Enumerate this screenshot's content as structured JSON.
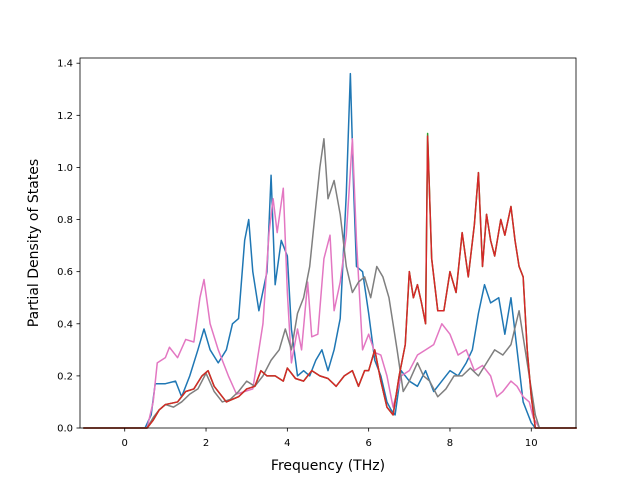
{
  "chart_data": {
    "type": "line",
    "title": "",
    "xlabel": "Frequency (THz)",
    "ylabel": "Partial Density of States",
    "xlim": [
      -1.1,
      11.1
    ],
    "ylim": [
      0.0,
      1.42
    ],
    "xticks": [
      0,
      2,
      4,
      6,
      8,
      10
    ],
    "xtick_labels": [
      "0",
      "2",
      "4",
      "6",
      "8",
      "10"
    ],
    "yticks": [
      0.0,
      0.2,
      0.4,
      0.6,
      0.8,
      1.0,
      1.2,
      1.4
    ],
    "ytick_labels": [
      "0.0",
      "0.2",
      "0.4",
      "0.6",
      "0.8",
      "1.0",
      "1.2",
      "1.4"
    ],
    "grid": false,
    "legend": "none",
    "series": [
      {
        "color": "#1f77b4",
        "x": [
          -1.0,
          0.5,
          0.65,
          0.75,
          1.0,
          1.25,
          1.4,
          1.6,
          1.8,
          1.95,
          2.1,
          2.3,
          2.5,
          2.65,
          2.8,
          2.95,
          3.05,
          3.15,
          3.3,
          3.5,
          3.6,
          3.7,
          3.85,
          4.0,
          4.1,
          4.25,
          4.4,
          4.55,
          4.7,
          4.85,
          5.0,
          5.15,
          5.3,
          5.45,
          5.55,
          5.63,
          5.7,
          5.85,
          6.0,
          6.15,
          6.3,
          6.45,
          6.55,
          6.65,
          6.8,
          7.0,
          7.2,
          7.4,
          7.6,
          7.8,
          8.0,
          8.2,
          8.4,
          8.55,
          8.7,
          8.85,
          9.0,
          9.2,
          9.35,
          9.5,
          9.65,
          9.8,
          9.9,
          10.0,
          10.1,
          11.1
        ],
        "y": [
          0.0,
          0.0,
          0.05,
          0.17,
          0.17,
          0.18,
          0.12,
          0.2,
          0.3,
          0.38,
          0.3,
          0.25,
          0.3,
          0.4,
          0.42,
          0.72,
          0.8,
          0.6,
          0.45,
          0.6,
          0.97,
          0.55,
          0.72,
          0.66,
          0.38,
          0.2,
          0.22,
          0.2,
          0.26,
          0.3,
          0.22,
          0.3,
          0.42,
          0.9,
          1.36,
          0.92,
          0.62,
          0.6,
          0.44,
          0.26,
          0.2,
          0.1,
          0.07,
          0.05,
          0.22,
          0.18,
          0.16,
          0.22,
          0.14,
          0.18,
          0.22,
          0.2,
          0.25,
          0.3,
          0.44,
          0.55,
          0.48,
          0.5,
          0.36,
          0.5,
          0.3,
          0.1,
          0.06,
          0.02,
          0.0,
          0.0
        ]
      },
      {
        "color": "#e377c2",
        "x": [
          -1.0,
          0.55,
          0.7,
          0.8,
          1.0,
          1.1,
          1.3,
          1.5,
          1.7,
          1.85,
          1.95,
          2.1,
          2.3,
          2.55,
          2.75,
          2.95,
          3.15,
          3.4,
          3.55,
          3.65,
          3.75,
          3.9,
          4.0,
          4.1,
          4.25,
          4.35,
          4.5,
          4.6,
          4.75,
          4.9,
          5.05,
          5.15,
          5.3,
          5.45,
          5.6,
          5.7,
          5.85,
          6.0,
          6.15,
          6.3,
          6.45,
          6.6,
          6.8,
          7.0,
          7.2,
          7.4,
          7.6,
          7.8,
          8.0,
          8.2,
          8.4,
          8.6,
          8.8,
          9.0,
          9.15,
          9.3,
          9.5,
          9.65,
          9.8,
          9.95,
          10.05,
          10.2,
          11.1
        ],
        "y": [
          0.0,
          0.0,
          0.1,
          0.25,
          0.27,
          0.31,
          0.27,
          0.34,
          0.33,
          0.5,
          0.57,
          0.4,
          0.3,
          0.2,
          0.13,
          0.14,
          0.15,
          0.4,
          0.75,
          0.88,
          0.75,
          0.92,
          0.52,
          0.25,
          0.38,
          0.3,
          0.56,
          0.35,
          0.36,
          0.65,
          0.74,
          0.45,
          0.56,
          0.74,
          1.11,
          0.72,
          0.3,
          0.36,
          0.29,
          0.28,
          0.2,
          0.08,
          0.2,
          0.22,
          0.28,
          0.3,
          0.32,
          0.4,
          0.36,
          0.28,
          0.3,
          0.22,
          0.24,
          0.2,
          0.12,
          0.14,
          0.18,
          0.16,
          0.12,
          0.1,
          0.04,
          0.0,
          0.0
        ]
      },
      {
        "color": "#7f7f7f",
        "x": [
          -1.0,
          0.55,
          0.7,
          0.85,
          1.0,
          1.2,
          1.4,
          1.6,
          1.8,
          2.0,
          2.2,
          2.4,
          2.6,
          2.8,
          3.0,
          3.2,
          3.4,
          3.6,
          3.8,
          3.95,
          4.1,
          4.25,
          4.4,
          4.55,
          4.7,
          4.8,
          4.9,
          5.0,
          5.15,
          5.3,
          5.45,
          5.6,
          5.75,
          5.9,
          6.05,
          6.2,
          6.35,
          6.5,
          6.6,
          6.7,
          6.85,
          7.0,
          7.2,
          7.35,
          7.5,
          7.7,
          7.9,
          8.1,
          8.3,
          8.5,
          8.7,
          8.9,
          9.1,
          9.3,
          9.5,
          9.7,
          9.85,
          10.0,
          10.1,
          10.2,
          11.1
        ],
        "y": [
          0.0,
          0.0,
          0.04,
          0.07,
          0.09,
          0.08,
          0.1,
          0.13,
          0.15,
          0.21,
          0.14,
          0.1,
          0.11,
          0.14,
          0.18,
          0.16,
          0.2,
          0.26,
          0.3,
          0.38,
          0.3,
          0.44,
          0.5,
          0.62,
          0.85,
          1.0,
          1.11,
          0.88,
          0.95,
          0.82,
          0.62,
          0.52,
          0.56,
          0.58,
          0.5,
          0.62,
          0.58,
          0.5,
          0.4,
          0.3,
          0.14,
          0.18,
          0.25,
          0.2,
          0.18,
          0.12,
          0.15,
          0.2,
          0.2,
          0.23,
          0.2,
          0.25,
          0.3,
          0.28,
          0.32,
          0.45,
          0.3,
          0.15,
          0.05,
          0.0,
          0.0
        ]
      },
      {
        "color": "#2ca02c",
        "x": [
          -1.0,
          0.55,
          0.7,
          0.85,
          1.0,
          1.3,
          1.5,
          1.7,
          1.9,
          2.05,
          2.2,
          2.5,
          2.8,
          3.0,
          3.2,
          3.35,
          3.5,
          3.7,
          3.9,
          4.0,
          4.2,
          4.4,
          4.6,
          4.8,
          5.0,
          5.2,
          5.4,
          5.6,
          5.75,
          5.9,
          6.0,
          6.15,
          6.3,
          6.45,
          6.6,
          6.75,
          6.9,
          7.0,
          7.1,
          7.2,
          7.3,
          7.4,
          7.45,
          7.55,
          7.7,
          7.85,
          8.0,
          8.15,
          8.3,
          8.45,
          8.6,
          8.7,
          8.8,
          8.9,
          9.0,
          9.1,
          9.25,
          9.35,
          9.5,
          9.6,
          9.7,
          9.8,
          9.9,
          10.0,
          10.1,
          11.1
        ],
        "y": [
          0.0,
          0.0,
          0.03,
          0.07,
          0.09,
          0.1,
          0.14,
          0.15,
          0.2,
          0.22,
          0.16,
          0.1,
          0.12,
          0.15,
          0.16,
          0.22,
          0.2,
          0.2,
          0.18,
          0.23,
          0.19,
          0.18,
          0.22,
          0.2,
          0.19,
          0.16,
          0.2,
          0.22,
          0.16,
          0.22,
          0.22,
          0.3,
          0.18,
          0.08,
          0.05,
          0.2,
          0.32,
          0.6,
          0.5,
          0.55,
          0.48,
          0.4,
          1.13,
          0.65,
          0.45,
          0.45,
          0.6,
          0.52,
          0.75,
          0.58,
          0.78,
          0.98,
          0.62,
          0.82,
          0.72,
          0.66,
          0.8,
          0.74,
          0.85,
          0.72,
          0.62,
          0.58,
          0.3,
          0.12,
          0.0,
          0.0
        ]
      },
      {
        "color": "#d62728",
        "x": [
          -1.0,
          0.55,
          0.7,
          0.85,
          1.0,
          1.3,
          1.5,
          1.7,
          1.9,
          2.05,
          2.2,
          2.5,
          2.8,
          3.0,
          3.2,
          3.35,
          3.5,
          3.7,
          3.9,
          4.0,
          4.2,
          4.4,
          4.6,
          4.8,
          5.0,
          5.2,
          5.4,
          5.6,
          5.75,
          5.9,
          6.0,
          6.15,
          6.3,
          6.45,
          6.6,
          6.75,
          6.9,
          7.0,
          7.1,
          7.2,
          7.3,
          7.4,
          7.45,
          7.55,
          7.7,
          7.85,
          8.0,
          8.15,
          8.3,
          8.45,
          8.6,
          8.7,
          8.8,
          8.9,
          9.0,
          9.1,
          9.25,
          9.35,
          9.5,
          9.6,
          9.7,
          9.8,
          9.9,
          10.0,
          10.1,
          11.1
        ],
        "y": [
          0.0,
          0.0,
          0.03,
          0.07,
          0.09,
          0.1,
          0.14,
          0.15,
          0.2,
          0.22,
          0.16,
          0.1,
          0.12,
          0.15,
          0.16,
          0.22,
          0.2,
          0.2,
          0.18,
          0.23,
          0.19,
          0.18,
          0.22,
          0.2,
          0.19,
          0.16,
          0.2,
          0.22,
          0.16,
          0.22,
          0.22,
          0.3,
          0.18,
          0.08,
          0.05,
          0.2,
          0.32,
          0.6,
          0.5,
          0.55,
          0.48,
          0.4,
          1.12,
          0.65,
          0.45,
          0.45,
          0.6,
          0.52,
          0.75,
          0.58,
          0.78,
          0.98,
          0.62,
          0.82,
          0.72,
          0.66,
          0.8,
          0.74,
          0.85,
          0.72,
          0.62,
          0.58,
          0.3,
          0.12,
          0.0,
          0.0
        ]
      }
    ]
  }
}
